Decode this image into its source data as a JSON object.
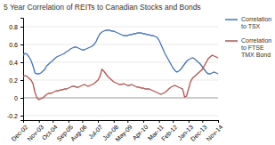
{
  "chart_data": {
    "type": "line",
    "title": "5 Year Correlation of REITs to Canadian Stocks and Bonds",
    "categories": [
      "Dec-02",
      null,
      null,
      null,
      null,
      null,
      null,
      null,
      "Nov-03",
      null,
      null,
      null,
      null,
      null,
      null,
      "Oct-04",
      null,
      null,
      null,
      null,
      null,
      null,
      null,
      "Sep-05",
      null,
      null,
      null,
      null,
      null,
      null,
      "Aug-06",
      null,
      null,
      null,
      null,
      null,
      null,
      null,
      "Jul-07",
      null,
      null,
      null,
      null,
      null,
      null,
      null,
      "Jun-08",
      null,
      null,
      null,
      null,
      null,
      null,
      "May-09",
      null,
      null,
      null,
      null,
      null,
      null,
      null,
      "Apr-10",
      null,
      null,
      null,
      null,
      null,
      null,
      null,
      "Mar-11",
      null,
      null,
      null,
      null,
      null,
      null,
      "Feb-12",
      null,
      null,
      null,
      null,
      null,
      null,
      null,
      "Jan-13",
      null,
      null,
      null,
      null,
      null,
      null,
      "Dec-13",
      null,
      null,
      null,
      null,
      null,
      null,
      null,
      "Nov-14"
    ],
    "series": [
      {
        "name": "Correlation\nto TSX",
        "color": "#4472c4",
        "values": [
          0.48,
          0.5,
          0.49,
          0.46,
          0.42,
          0.36,
          0.28,
          0.27,
          0.27,
          0.28,
          0.3,
          0.32,
          0.36,
          0.38,
          0.4,
          0.42,
          0.44,
          0.46,
          0.47,
          0.48,
          0.49,
          0.5,
          0.52,
          0.53,
          0.55,
          0.56,
          0.57,
          0.57,
          0.56,
          0.55,
          0.54,
          0.54,
          0.55,
          0.56,
          0.57,
          0.58,
          0.6,
          0.63,
          0.68,
          0.72,
          0.74,
          0.75,
          0.76,
          0.76,
          0.76,
          0.75,
          0.75,
          0.74,
          0.73,
          0.72,
          0.71,
          0.7,
          0.7,
          0.7,
          0.71,
          0.71,
          0.72,
          0.72,
          0.73,
          0.73,
          0.73,
          0.72,
          0.72,
          0.71,
          0.71,
          0.7,
          0.7,
          0.69,
          0.68,
          0.65,
          0.6,
          0.55,
          0.5,
          0.46,
          0.42,
          0.38,
          0.34,
          0.31,
          0.29,
          0.3,
          0.32,
          0.35,
          0.38,
          0.41,
          0.43,
          0.44,
          0.45,
          0.44,
          0.42,
          0.4,
          0.38,
          0.35,
          0.32,
          0.29,
          0.27,
          0.27,
          0.28,
          0.29,
          0.28,
          0.27
        ]
      },
      {
        "name": "Correlation\nto FTSE\nTMX Bond",
        "color": "#c0504d",
        "values": [
          0.24,
          0.25,
          0.24,
          0.22,
          0.2,
          0.16,
          0.06,
          0.0,
          -0.02,
          -0.01,
          0.0,
          0.02,
          0.04,
          0.05,
          0.05,
          0.06,
          0.07,
          0.08,
          0.08,
          0.09,
          0.09,
          0.1,
          0.1,
          0.11,
          0.12,
          0.13,
          0.13,
          0.12,
          0.12,
          0.13,
          0.14,
          0.15,
          0.14,
          0.13,
          0.14,
          0.15,
          0.16,
          0.18,
          0.2,
          0.24,
          0.32,
          0.3,
          0.27,
          0.24,
          0.22,
          0.2,
          0.18,
          0.17,
          0.16,
          0.15,
          0.15,
          0.16,
          0.15,
          0.14,
          0.14,
          0.15,
          0.14,
          0.13,
          0.12,
          0.12,
          0.11,
          0.11,
          0.1,
          0.1,
          0.1,
          0.09,
          0.08,
          0.07,
          0.06,
          0.05,
          0.04,
          0.05,
          0.06,
          0.08,
          0.1,
          0.12,
          0.13,
          0.14,
          0.13,
          0.12,
          0.11,
          0.1,
          0.01,
          0.02,
          0.1,
          0.18,
          0.22,
          0.24,
          0.26,
          0.28,
          0.3,
          0.32,
          0.36,
          0.4,
          0.44,
          0.46,
          0.48,
          0.47,
          0.46,
          0.45
        ]
      }
    ],
    "ylim": [
      -0.25,
      0.9
    ],
    "yticks": [
      -0.2,
      0,
      0.2,
      0.4,
      0.6,
      0.8
    ],
    "grid": true,
    "legend": "right"
  }
}
